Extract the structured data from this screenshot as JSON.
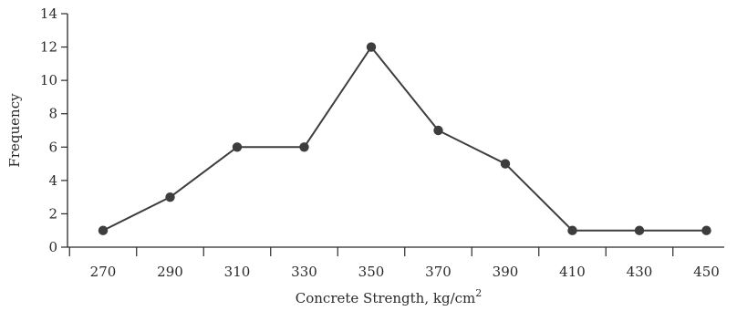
{
  "chart_data": {
    "type": "line",
    "title": "",
    "xlabel": "Concrete Strength, kg/cm",
    "xlabel_superscript": "2",
    "ylabel": "Frequency",
    "x": [
      270,
      290,
      310,
      330,
      350,
      370,
      390,
      410,
      430,
      450
    ],
    "series": [
      {
        "values": [
          1,
          3,
          6,
          6,
          12,
          7,
          5,
          1,
          1,
          1
        ]
      }
    ],
    "ylim": [
      0,
      14
    ],
    "yticks": [
      0,
      2,
      4,
      6,
      8,
      10,
      12,
      14
    ],
    "xtick_labels": [
      "270",
      "290",
      "310",
      "330",
      "350",
      "370",
      "390",
      "410",
      "430",
      "450"
    ],
    "grid": false,
    "legend": "none",
    "colors": {
      "line": "#3d3d3d",
      "axis": "#2a2a2a"
    }
  }
}
